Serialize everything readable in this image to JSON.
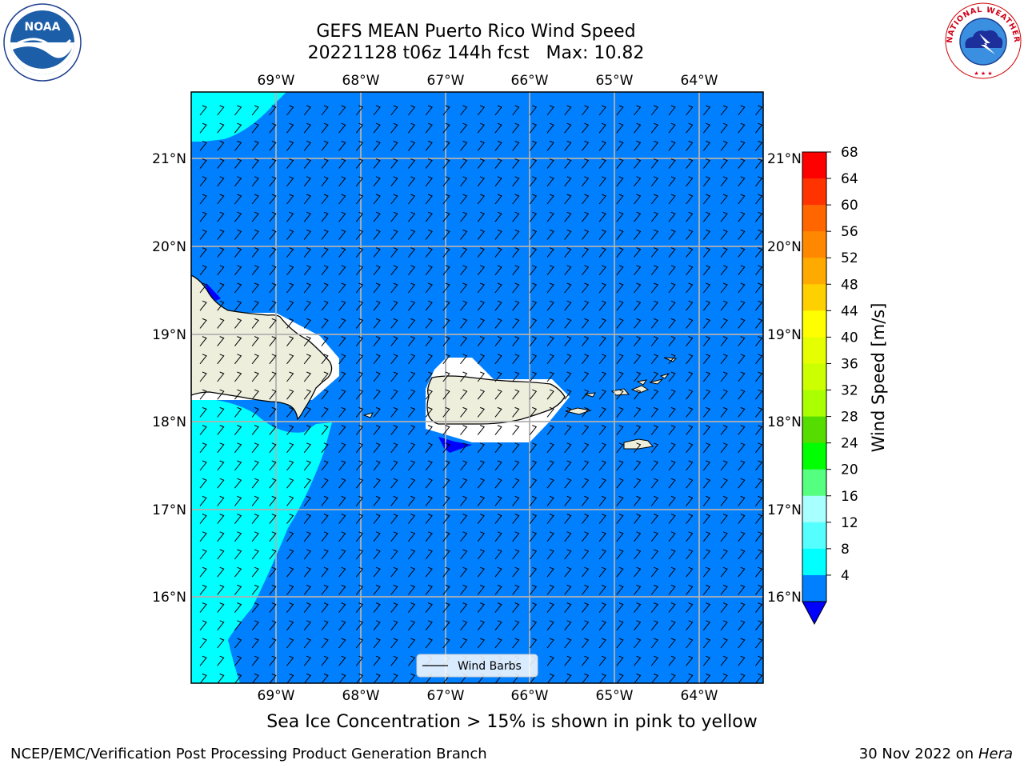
{
  "title": {
    "line1": "GEFS MEAN Puerto Rico Wind Speed",
    "line2": "20221128 t06z 144h fcst   Max: 10.82"
  },
  "map": {
    "lon_labels": [
      "69°W",
      "68°W",
      "67°W",
      "66°W",
      "65°W",
      "64°W"
    ],
    "lat_labels": [
      "21°N",
      "20°N",
      "19°N",
      "18°N",
      "17°N",
      "16°N"
    ],
    "legend_label": "Wind Barbs",
    "colors": {
      "ocean": "#0080ff",
      "light": "#00ffff",
      "land": "#eeeedd",
      "grid": "#b0b0b0"
    }
  },
  "colorbar": {
    "title": "Wind Speed [m/s]",
    "levels": [
      "68",
      "64",
      "60",
      "56",
      "52",
      "48",
      "44",
      "40",
      "36",
      "32",
      "28",
      "24",
      "20",
      "16",
      "12",
      "8",
      "4"
    ],
    "colors": [
      "#ff0000",
      "#ff3300",
      "#ff6600",
      "#ff8800",
      "#ffaa00",
      "#ffd000",
      "#ffff00",
      "#e6ff00",
      "#ccff00",
      "#aaff00",
      "#55dd00",
      "#00ff00",
      "#55ff80",
      "#a8ffff",
      "#55ffff",
      "#00ffff",
      "#0080ff"
    ],
    "extend_color": "#0000ff"
  },
  "caption": "Sea Ice Concentration > 15% is shown in pink to yellow",
  "footer": {
    "left": "NCEP/EMC/Verification Post Processing Product Generation Branch",
    "right_date": "30 Nov 2022 on",
    "right_machine": "Hera"
  },
  "logos": {
    "left": "NOAA",
    "right": "NATIONAL WEATHER SERVICE"
  }
}
